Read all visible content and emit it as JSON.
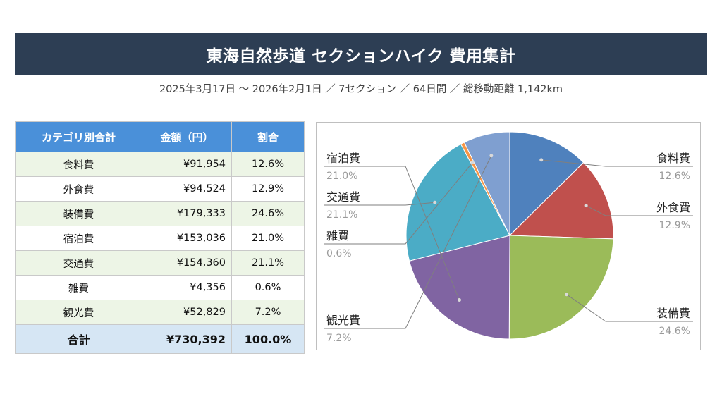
{
  "header": {
    "title": "東海自然歩道 セクションハイク 費用集計",
    "subtitle": "2025年3月17日 〜 2026年2月1日 ／ 7セクション ／ 64日間 ／ 総移動距離 1,142km"
  },
  "table": {
    "headers": [
      "カテゴリ別合計",
      "金額（円）",
      "割合"
    ],
    "rows": [
      {
        "category": "食料費",
        "amount": "¥91,954",
        "percent": "12.6%"
      },
      {
        "category": "外食費",
        "amount": "¥94,524",
        "percent": "12.9%"
      },
      {
        "category": "装備費",
        "amount": "¥179,333",
        "percent": "24.6%"
      },
      {
        "category": "宿泊費",
        "amount": "¥153,036",
        "percent": "21.0%"
      },
      {
        "category": "交通費",
        "amount": "¥154,360",
        "percent": "21.1%"
      },
      {
        "category": "雑費",
        "amount": "¥4,356",
        "percent": "0.6%"
      },
      {
        "category": "観光費",
        "amount": "¥52,829",
        "percent": "7.2%"
      }
    ],
    "total": {
      "label": "合計",
      "amount": "¥730,392",
      "percent": "100.0%"
    }
  },
  "chart_data": {
    "type": "pie",
    "title": "",
    "start_angle_deg": 0,
    "direction": "clockwise",
    "slices": [
      {
        "label": "食料費",
        "value": 91954,
        "percent": "12.6%",
        "color": "#4f81bd",
        "side": "right"
      },
      {
        "label": "外食費",
        "value": 94524,
        "percent": "12.9%",
        "color": "#c0504d",
        "side": "right"
      },
      {
        "label": "装備費",
        "value": 179333,
        "percent": "24.6%",
        "color": "#9bbb59",
        "side": "right"
      },
      {
        "label": "宿泊費",
        "value": 153036,
        "percent": "21.0%",
        "color": "#8064a2",
        "side": "left"
      },
      {
        "label": "交通費",
        "value": 154360,
        "percent": "21.1%",
        "color": "#4bacc6",
        "side": "left"
      },
      {
        "label": "雑費",
        "value": 4356,
        "percent": "0.6%",
        "color": "#f79646",
        "side": "left"
      },
      {
        "label": "観光費",
        "value": 52829,
        "percent": "7.2%",
        "color": "#7f9fd0",
        "side": "left"
      }
    ]
  }
}
